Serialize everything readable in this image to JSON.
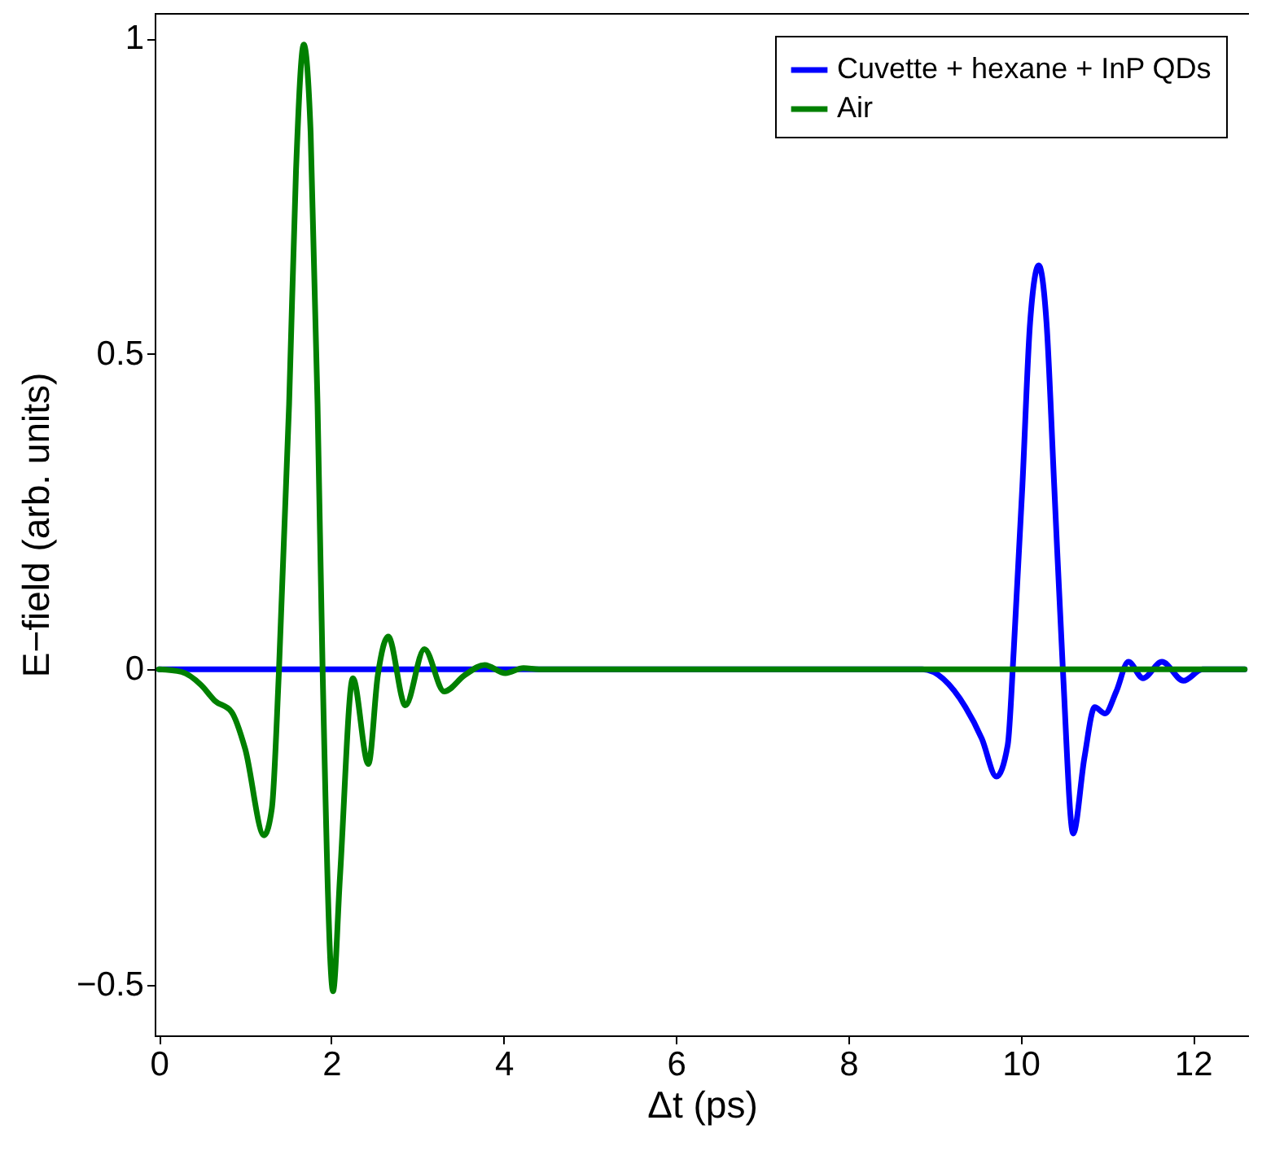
{
  "chart_data": {
    "type": "line",
    "xlabel": "Δt (ps)",
    "ylabel": "E−field (arb. units)",
    "xlim": [
      -0.05,
      12.65
    ],
    "ylim": [
      -0.58,
      1.04
    ],
    "xticks": [
      0,
      2,
      4,
      6,
      8,
      10,
      12
    ],
    "yticks": [
      -0.5,
      0,
      0.5,
      1
    ],
    "grid": false,
    "legend": "top right",
    "marker": "none",
    "line_style": "solid",
    "series": [
      {
        "name": "Cuvette + hexane + InP QDs",
        "color": "#0000ff",
        "x": [
          0,
          2,
          4,
          6,
          8,
          8.36,
          8.86,
          9.36,
          9.55,
          9.72,
          9.85,
          9.92,
          10.02,
          10.11,
          10.21,
          10.3,
          10.39,
          10.49,
          10.61,
          10.74,
          10.86,
          10.98,
          11.11,
          11.25,
          11.42,
          11.64,
          11.89,
          12.11,
          12.36,
          12.6
        ],
        "values": [
          0,
          0,
          0,
          0,
          0,
          0,
          0,
          -0.06,
          -0.11,
          -0.17,
          -0.12,
          0.03,
          0.29,
          0.55,
          0.64,
          0.55,
          0.29,
          0,
          -0.26,
          -0.14,
          -0.06,
          -0.07,
          -0.035,
          0.012,
          -0.014,
          0.012,
          -0.018,
          0,
          0,
          0
        ]
      },
      {
        "name": "Air",
        "color": "#008000",
        "x": [
          0,
          0.26,
          0.49,
          0.65,
          0.84,
          1.0,
          1.22,
          1.31,
          1.39,
          1.51,
          1.59,
          1.68,
          1.76,
          1.84,
          1.9,
          2.02,
          2.1,
          2.25,
          2.43,
          2.54,
          2.66,
          2.86,
          3.08,
          3.31,
          3.55,
          3.78,
          4.02,
          4.23,
          4.41,
          6,
          8,
          10,
          12,
          12.6
        ],
        "values": [
          0,
          -0.004,
          -0.025,
          -0.05,
          -0.067,
          -0.126,
          -0.263,
          -0.22,
          -0.009,
          0.42,
          0.79,
          0.99,
          0.85,
          0.42,
          -0.009,
          -0.51,
          -0.33,
          -0.014,
          -0.15,
          -0.009,
          0.052,
          -0.057,
          0.032,
          -0.035,
          -0.009,
          0.007,
          -0.006,
          0.002,
          0,
          0,
          0,
          0,
          0,
          0
        ]
      }
    ]
  }
}
